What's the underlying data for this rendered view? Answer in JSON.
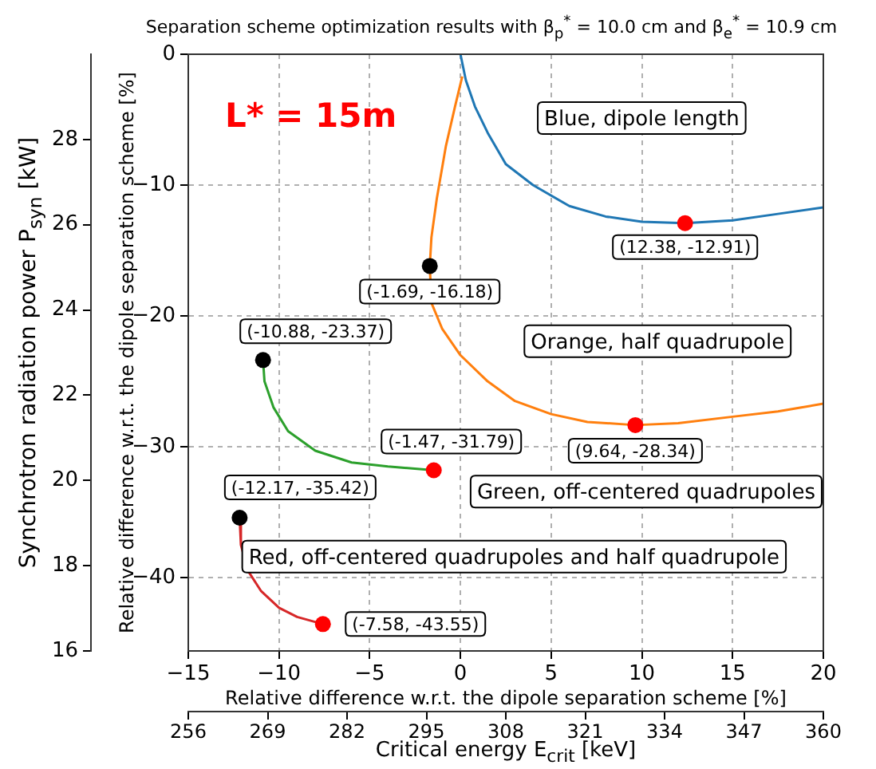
{
  "chart_data": {
    "type": "line",
    "title": "Separation scheme optimization results with β$_{p}$$^{*}$ = 10.0 cm and β$_{e}$$^{*}$ = 10.9 cm",
    "xlabel": "Relative difference w.r.t. the dipole separation scheme [%]",
    "ylabel": "Relative difference w.r.t. the dipole separation scheme [%]",
    "y2label": "Synchrotron radiation power P$_{syn}$ [kW]",
    "x2label": "Critical energy E$_{crit}$ [keV]",
    "xlim": [
      -15,
      20
    ],
    "xticks": [
      -15,
      -10,
      -5,
      0,
      5,
      10,
      15,
      20
    ],
    "ylim": [
      -45.6,
      0
    ],
    "yticks": [
      -40,
      -30,
      -20,
      -10,
      0
    ],
    "y2lim": [
      16,
      30
    ],
    "y2ticks": [
      16,
      18,
      20,
      22,
      24,
      26,
      28
    ],
    "x2lim": [
      256,
      360
    ],
    "x2ticks": [
      256,
      269,
      282,
      295,
      308,
      321,
      334,
      347,
      360
    ],
    "grid": true,
    "legend": false,
    "series": [
      {
        "type": "line",
        "color": "#1f77b4",
        "marker": "none",
        "x": [
          0,
          0.3,
          0.8,
          1.5,
          2.5,
          4,
          6,
          8,
          10,
          12.38,
          15,
          17.5,
          20
        ],
        "values": [
          0,
          -2,
          -4,
          -6,
          -8.4,
          -10,
          -11.6,
          -12.4,
          -12.8,
          -12.91,
          -12.7,
          -12.2,
          -11.7
        ]
      },
      {
        "type": "line",
        "color": "#ff7f0e",
        "marker": "none",
        "x": [
          0.1,
          -0.3,
          -0.8,
          -1.3,
          -1.6,
          -1.69,
          -1.6,
          -1,
          0,
          1.5,
          3,
          5,
          7,
          9.64,
          12,
          15,
          17.5,
          20
        ],
        "values": [
          -1.7,
          -4,
          -7,
          -11,
          -14,
          -16.18,
          -19,
          -21,
          -23,
          -25,
          -26.5,
          -27.5,
          -28.1,
          -28.34,
          -28.2,
          -27.7,
          -27.3,
          -26.7
        ]
      },
      {
        "type": "line",
        "color": "#2ca02c",
        "marker": "none",
        "x": [
          -10.88,
          -10.8,
          -10.3,
          -9.5,
          -8,
          -6,
          -4,
          -1.47
        ],
        "values": [
          -23.37,
          -25,
          -27,
          -28.8,
          -30.3,
          -31.2,
          -31.5,
          -31.79
        ]
      },
      {
        "type": "line",
        "color": "#d62728",
        "marker": "none",
        "x": [
          -12.17,
          -12.1,
          -11.7,
          -11,
          -10,
          -9,
          -7.58
        ],
        "values": [
          -35.42,
          -37.5,
          -39.5,
          -41,
          -42.3,
          -43,
          -43.55
        ]
      },
      {
        "type": "scatter",
        "color": "#000000",
        "marker": "circle",
        "x": [
          -1.69,
          -10.88,
          -12.17
        ],
        "values": [
          -16.18,
          -23.37,
          -35.42
        ]
      },
      {
        "type": "scatter",
        "color": "#ff0000",
        "marker": "circle",
        "x": [
          12.38,
          9.64,
          -1.47,
          -7.58
        ],
        "values": [
          -12.91,
          -28.34,
          -31.79,
          -43.55
        ]
      }
    ],
    "annotations": [
      {
        "text": "(12.38, -12.91)",
        "x": 12.38,
        "y": -12.91
      },
      {
        "text": "(-1.69, -16.18)",
        "x": -1.69,
        "y": -16.18
      },
      {
        "text": "(-10.88, -23.37)",
        "x": -10.88,
        "y": -23.37
      },
      {
        "text": "(-1.47, -31.79)",
        "x": -1.47,
        "y": -31.79
      },
      {
        "text": "(9.64, -28.34)",
        "x": 9.64,
        "y": -28.34
      },
      {
        "text": "(-12.17, -35.42)",
        "x": -12.17,
        "y": -35.42
      },
      {
        "text": "(-7.58, -43.55)",
        "x": -7.58,
        "y": -43.55
      },
      "L* = 15m",
      "Blue, dipole length",
      "Orange, half quadrupole",
      "Green, off-centered quadrupoles",
      "Red, off-centered quadrupoles and half quadrupole"
    ]
  }
}
